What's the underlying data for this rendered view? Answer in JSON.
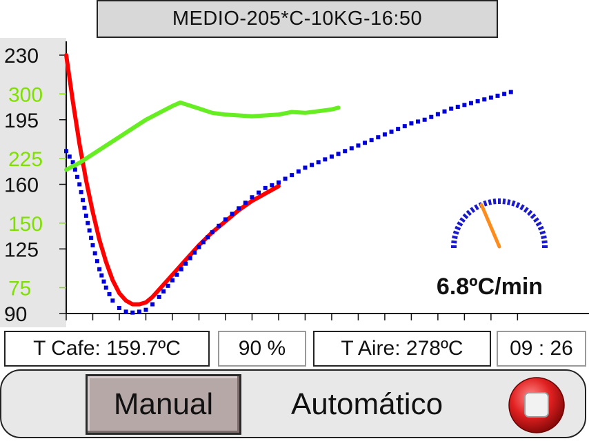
{
  "header": {
    "title": "MEDIO-205*C-10KG-16:50"
  },
  "chart_data": {
    "type": "line",
    "left_axis_black": {
      "ticks": [
        230,
        195,
        160,
        125,
        90
      ],
      "color": "#111111"
    },
    "left_axis_green": {
      "ticks": [
        300,
        225,
        150,
        75
      ],
      "color": "#7fe000"
    },
    "series": [
      {
        "name": "",
        "color": "#ff0000",
        "style": "line",
        "points": [
          [
            0,
            230
          ],
          [
            0.5,
            205
          ],
          [
            1,
            182
          ],
          [
            1.5,
            162
          ],
          [
            2,
            145
          ],
          [
            2.5,
            130
          ],
          [
            3,
            118
          ],
          [
            3.5,
            108
          ],
          [
            4,
            101
          ],
          [
            4.5,
            97
          ],
          [
            5,
            95
          ],
          [
            5.5,
            95
          ],
          [
            6,
            96
          ],
          [
            6.5,
            99
          ],
          [
            7,
            103
          ],
          [
            8,
            111
          ],
          [
            9,
            119
          ],
          [
            10,
            127
          ],
          [
            11,
            134
          ],
          [
            12,
            140
          ],
          [
            13,
            146
          ],
          [
            14,
            151
          ],
          [
            15,
            155
          ],
          [
            16,
            159
          ]
        ]
      },
      {
        "name": "",
        "color": "#0000dd",
        "style": "dots",
        "points": [
          [
            0,
            178
          ],
          [
            0.5,
            172
          ],
          [
            1,
            160
          ],
          [
            1.5,
            143
          ],
          [
            2,
            127
          ],
          [
            2.5,
            114
          ],
          [
            3,
            104
          ],
          [
            3.5,
            97
          ],
          [
            4,
            93
          ],
          [
            4.5,
            91
          ],
          [
            5,
            90.5
          ],
          [
            5.5,
            91
          ],
          [
            6,
            92
          ],
          [
            6.5,
            95
          ],
          [
            7,
            99
          ],
          [
            8,
            108
          ],
          [
            9,
            117
          ],
          [
            10,
            126
          ],
          [
            11,
            134
          ],
          [
            12,
            141
          ],
          [
            13,
            147
          ],
          [
            14,
            153
          ],
          [
            15,
            158
          ],
          [
            16,
            161
          ],
          [
            17,
            165
          ],
          [
            18,
            169
          ],
          [
            19,
            172
          ],
          [
            20,
            175
          ],
          [
            21,
            178
          ],
          [
            22,
            181
          ],
          [
            23,
            184
          ],
          [
            24,
            187
          ],
          [
            25,
            190
          ],
          [
            26,
            193
          ],
          [
            27,
            195
          ],
          [
            28,
            198
          ],
          [
            29,
            201
          ],
          [
            30,
            203
          ],
          [
            31,
            205
          ],
          [
            32,
            207
          ],
          [
            33,
            209
          ],
          [
            34,
            211
          ]
        ]
      },
      {
        "name": "",
        "color": "#66ee22",
        "style": "line",
        "points": [
          [
            0,
            212
          ],
          [
            1,
            220
          ],
          [
            2,
            230
          ],
          [
            3,
            240
          ],
          [
            4,
            250
          ],
          [
            5,
            260
          ],
          [
            6,
            270
          ],
          [
            7,
            278
          ],
          [
            8,
            286
          ],
          [
            8.6,
            290
          ],
          [
            9,
            288
          ],
          [
            10,
            283
          ],
          [
            11,
            278
          ],
          [
            12,
            276
          ],
          [
            13,
            275
          ],
          [
            14,
            274
          ],
          [
            15,
            275
          ],
          [
            16,
            276
          ],
          [
            17,
            279
          ],
          [
            18,
            278
          ],
          [
            19,
            280
          ],
          [
            20,
            282
          ],
          [
            20.5,
            284
          ]
        ]
      }
    ],
    "x_range": [
      0,
      34.5
    ],
    "y_range_black": [
      90,
      230
    ],
    "y_range_green": [
      45,
      345
    ]
  },
  "gauge": {
    "readout": "6.8ºC/min",
    "value": 6.8,
    "needle_color": "#ff8c1a",
    "scale_color": "#1a1acc"
  },
  "status": {
    "t_cafe": "T Cafe: 159.7ºC",
    "percent": "90 %",
    "t_aire": "T Aire: 278ºC",
    "time": "09 : 26"
  },
  "controls": {
    "manual_label": "Manual",
    "auto_label": "Automático",
    "stop_icon": "stop-record-icon",
    "stop_color": "#d42020"
  }
}
